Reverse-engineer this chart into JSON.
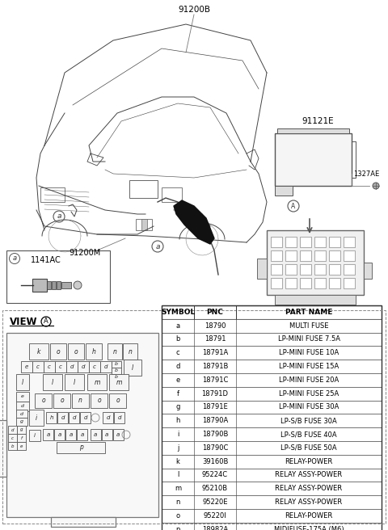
{
  "car_label": "91200B",
  "module_label": "91121E",
  "fastener_label": "1327AE",
  "wire_label": "91200M",
  "connector_label": "1141AC",
  "table_headers": [
    "SYMBOL",
    "PNC",
    "PART NAME"
  ],
  "table_rows": [
    [
      "a",
      "18790",
      "MULTI FUSE"
    ],
    [
      "b",
      "18791",
      "LP-MINI FUSE 7.5A"
    ],
    [
      "c",
      "18791A",
      "LP-MINI FUSE 10A"
    ],
    [
      "d",
      "18791B",
      "LP-MINI FUSE 15A"
    ],
    [
      "e",
      "18791C",
      "LP-MINI FUSE 20A"
    ],
    [
      "f",
      "18791D",
      "LP-MINI FUSE 25A"
    ],
    [
      "g",
      "18791E",
      "LP-MINI FUSE 30A"
    ],
    [
      "h",
      "18790A",
      "LP-S/B FUSE 30A"
    ],
    [
      "i",
      "18790B",
      "LP-S/B FUSE 40A"
    ],
    [
      "j",
      "18790C",
      "LP-S/B FUSE 50A"
    ],
    [
      "k",
      "39160B",
      "RELAY-POWER"
    ],
    [
      "l",
      "95224C",
      "RELAY ASSY-POWER"
    ],
    [
      "m",
      "95210B",
      "RELAY ASSY-POWER"
    ],
    [
      "n",
      "95220E",
      "RELAY ASSY-POWER"
    ],
    [
      "o",
      "95220I",
      "RELAY-POWER"
    ],
    [
      "p",
      "18982A",
      "MIDIFUSE-175A (M6)"
    ]
  ],
  "bg_color": "#ffffff",
  "line_color": "#444444",
  "text_color": "#000000"
}
